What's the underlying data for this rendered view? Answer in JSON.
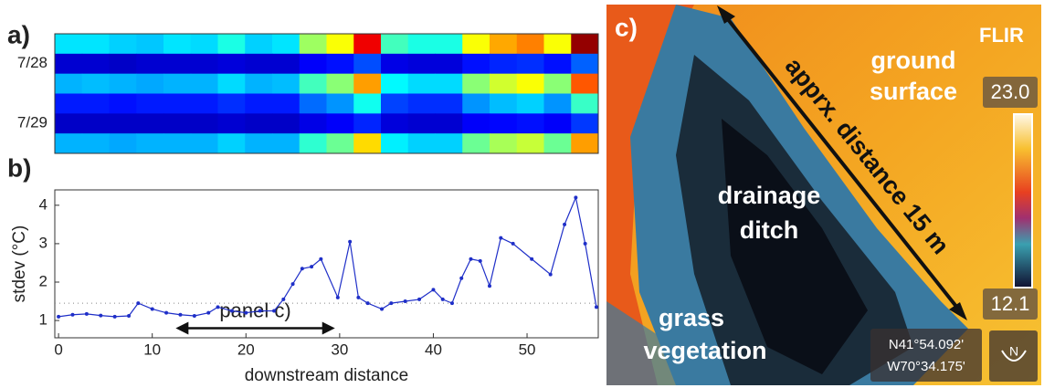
{
  "chart_data": [
    {
      "type": "heatmap",
      "panel_label": "a)",
      "colormap": "jet",
      "ylim": [
        0,
        6
      ],
      "yticks": [
        {
          "value": 1.5,
          "label": "7/28"
        },
        {
          "value": 4.5,
          "label": "7/29"
        }
      ],
      "z": [
        [
          0.35,
          0.35,
          0.33,
          0.32,
          0.35,
          0.34,
          0.4,
          0.33,
          0.35,
          0.53,
          0.62,
          0.89,
          0.44,
          0.4,
          0.4,
          0.62,
          0.71,
          0.75,
          0.62,
          0.98
        ],
        [
          0.08,
          0.08,
          0.07,
          0.08,
          0.08,
          0.08,
          0.09,
          0.08,
          0.08,
          0.12,
          0.14,
          0.2,
          0.1,
          0.09,
          0.09,
          0.14,
          0.16,
          0.17,
          0.14,
          0.22
        ],
        [
          0.3,
          0.31,
          0.3,
          0.29,
          0.3,
          0.3,
          0.34,
          0.3,
          0.31,
          0.44,
          0.51,
          0.72,
          0.37,
          0.34,
          0.34,
          0.51,
          0.58,
          0.62,
          0.51,
          0.79
        ],
        [
          0.15,
          0.15,
          0.14,
          0.15,
          0.15,
          0.15,
          0.17,
          0.15,
          0.15,
          0.23,
          0.27,
          0.39,
          0.19,
          0.17,
          0.17,
          0.27,
          0.31,
          0.33,
          0.27,
          0.43
        ],
        [
          0.07,
          0.07,
          0.07,
          0.07,
          0.07,
          0.07,
          0.08,
          0.07,
          0.07,
          0.1,
          0.12,
          0.16,
          0.09,
          0.08,
          0.08,
          0.12,
          0.13,
          0.14,
          0.12,
          0.18
        ],
        [
          0.3,
          0.3,
          0.29,
          0.3,
          0.3,
          0.3,
          0.33,
          0.3,
          0.3,
          0.42,
          0.48,
          0.66,
          0.36,
          0.33,
          0.33,
          0.48,
          0.54,
          0.57,
          0.48,
          0.72
        ]
      ]
    },
    {
      "type": "line",
      "panel_label": "b)",
      "y_label": "stdev (°C)",
      "x_label": "downstream distance",
      "xlim": [
        -0.4,
        57.6
      ],
      "xticks": [
        0,
        10,
        20,
        30,
        40,
        50
      ],
      "ylim": [
        0.55,
        4.4
      ],
      "yticks": [
        1,
        2,
        3,
        4
      ],
      "threshold": 1.45,
      "annotation": {
        "text": "panel c)",
        "x_range": [
          12.5,
          29.5
        ],
        "y": 0.8
      },
      "series": [
        {
          "color": "#1f2fc8",
          "x": [
            0,
            1.5,
            3,
            4.5,
            6,
            7.5,
            8.5,
            10,
            11.5,
            13,
            14.5,
            16,
            17,
            18.5,
            20,
            21.5,
            23,
            24,
            25,
            26,
            27,
            28,
            29.8,
            31.1,
            32,
            33,
            34.5,
            35.5,
            37,
            38.5,
            40,
            41,
            42,
            43,
            44,
            45,
            46,
            47.2,
            48.5,
            50.5,
            52.5,
            54,
            55.2,
            56.2,
            57.4
          ],
          "values": [
            1.1,
            1.15,
            1.17,
            1.13,
            1.1,
            1.12,
            1.45,
            1.3,
            1.2,
            1.15,
            1.12,
            1.2,
            1.35,
            1.25,
            1.2,
            1.25,
            1.25,
            1.55,
            1.95,
            2.35,
            2.4,
            2.6,
            1.6,
            3.05,
            1.6,
            1.45,
            1.3,
            1.45,
            1.5,
            1.55,
            1.8,
            1.55,
            1.45,
            2.1,
            2.6,
            2.55,
            1.9,
            3.15,
            3.0,
            2.6,
            2.2,
            3.5,
            4.2,
            3.0,
            1.35
          ]
        }
      ]
    }
  ],
  "image": {
    "panel_label": "c)",
    "brand": "FLIR",
    "ground_label": [
      "ground",
      "surface"
    ],
    "distance_label": "apprx. distance 15 m",
    "ditch_label": [
      "drainage",
      "ditch"
    ],
    "grass_label": [
      "grass",
      "vegetation"
    ],
    "scale_max": "23.0",
    "scale_min": "12.1",
    "gps": [
      "N41°54.092'",
      "W70°34.175'"
    ],
    "compass": "N"
  }
}
